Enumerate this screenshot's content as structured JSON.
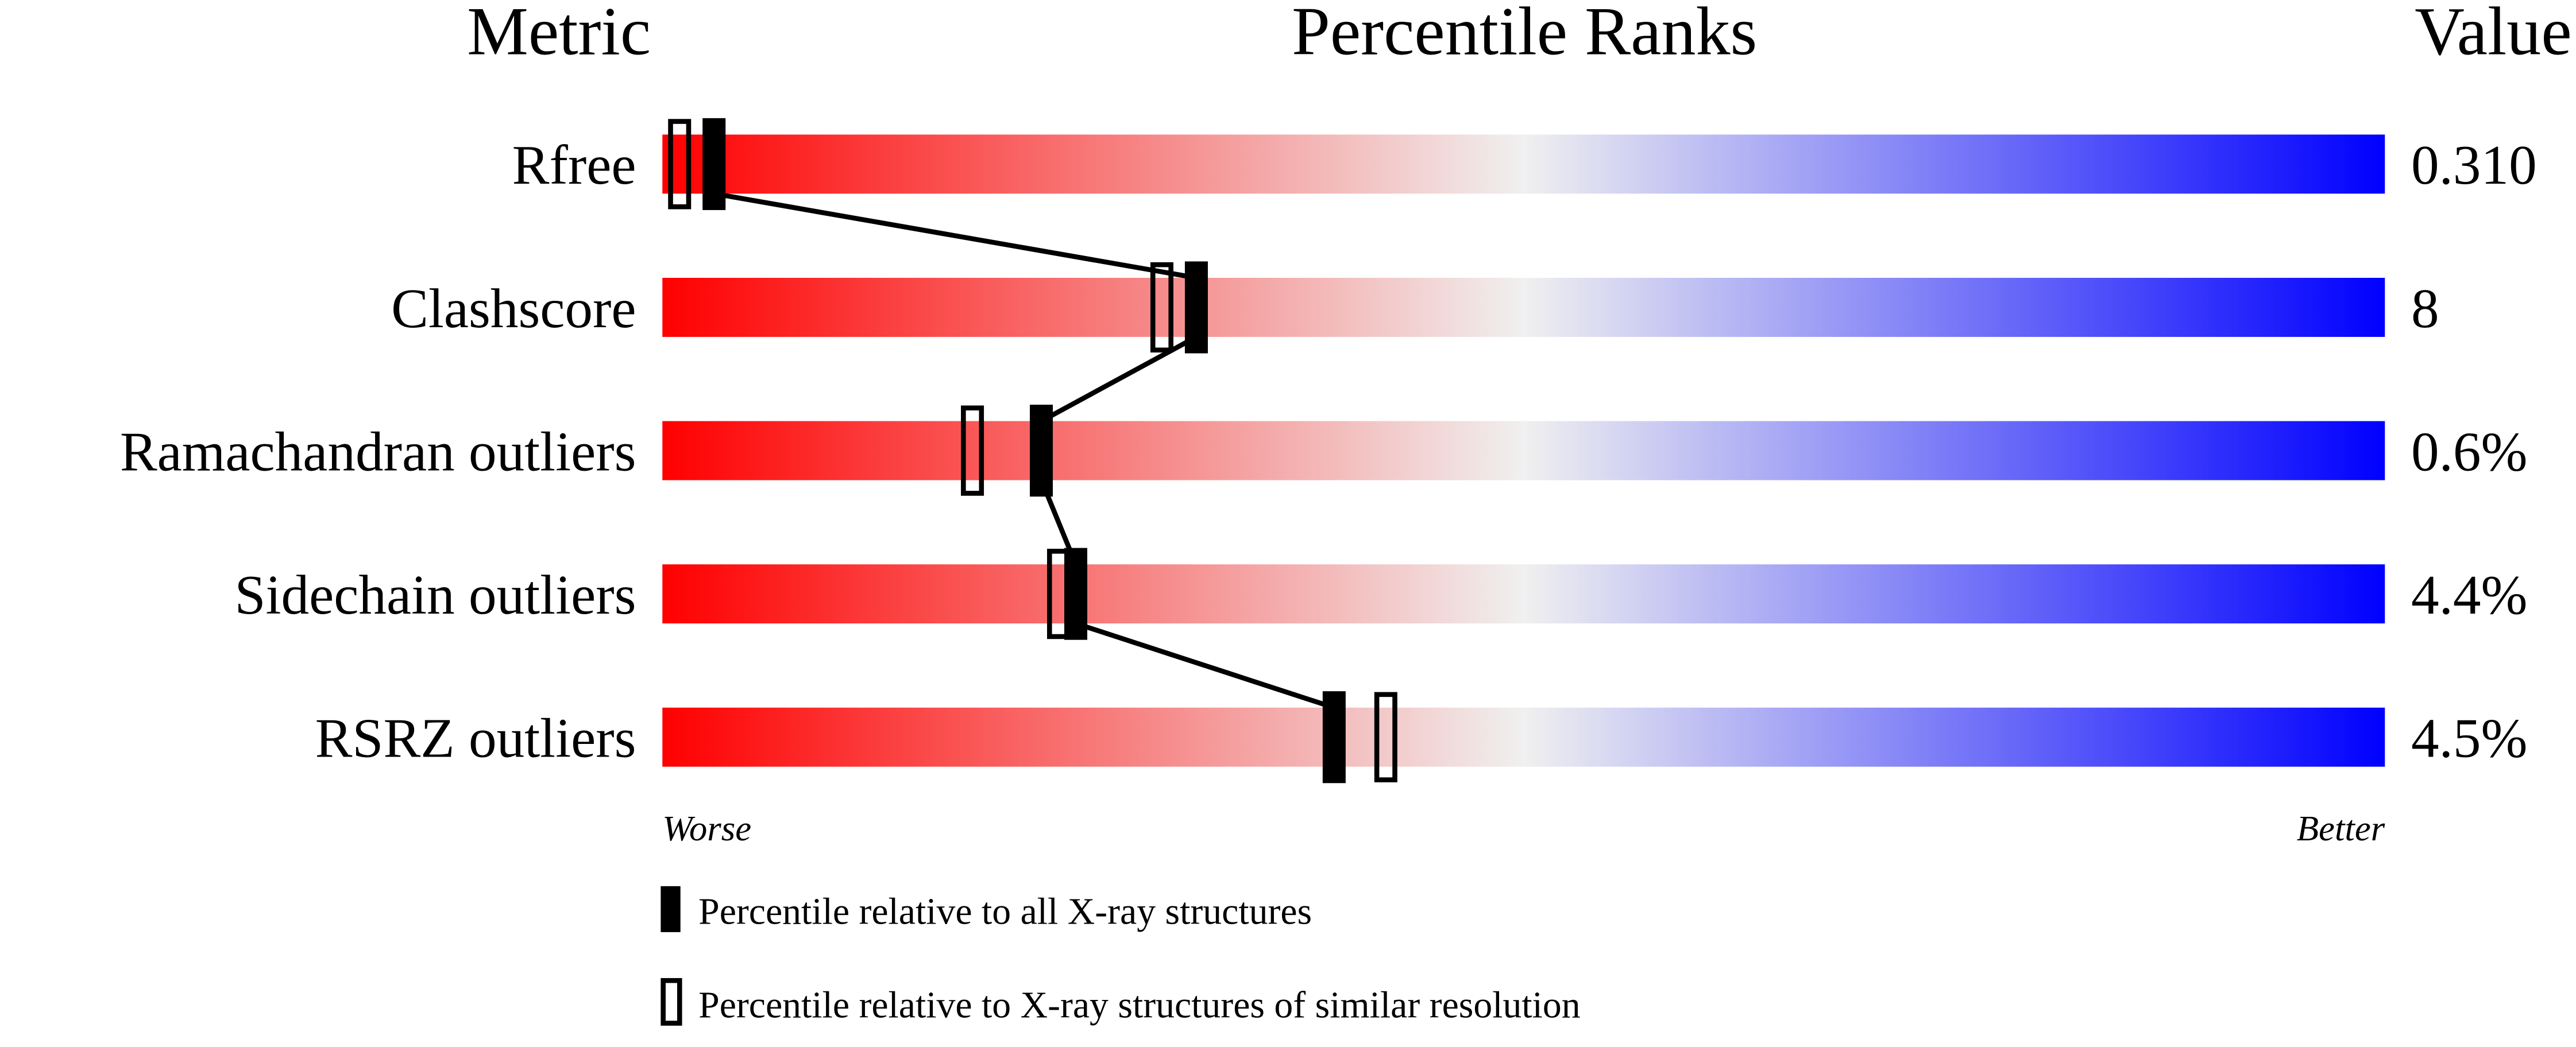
{
  "chart_data": {
    "type": "bar",
    "headers": {
      "metric": "Metric",
      "percentile": "Percentile Ranks",
      "value": "Value"
    },
    "metrics": [
      {
        "label": "Rfree",
        "value": "0.310",
        "percentile_all": 3,
        "percentile_similar": 1
      },
      {
        "label": "Clashscore",
        "value": "8",
        "percentile_all": 31,
        "percentile_similar": 29
      },
      {
        "label": "Ramachandran outliers",
        "value": "0.6%",
        "percentile_all": 22,
        "percentile_similar": 18
      },
      {
        "label": "Sidechain outliers",
        "value": "4.4%",
        "percentile_all": 24,
        "percentile_similar": 23
      },
      {
        "label": "RSRZ outliers",
        "value": "4.5%",
        "percentile_all": 39,
        "percentile_similar": 42
      }
    ],
    "xlim": [
      0,
      100
    ],
    "axis_left_label": "Worse",
    "axis_right_label": "Better",
    "legend": {
      "placement": "bottom",
      "all": "Percentile relative to all X-ray structures",
      "similar": "Percentile relative to X-ray structures of similar resolution"
    },
    "colors": {
      "worse": "#ff0000",
      "middle": "#f0f0f0",
      "better": "#0000ff",
      "marker": "#000000"
    }
  }
}
